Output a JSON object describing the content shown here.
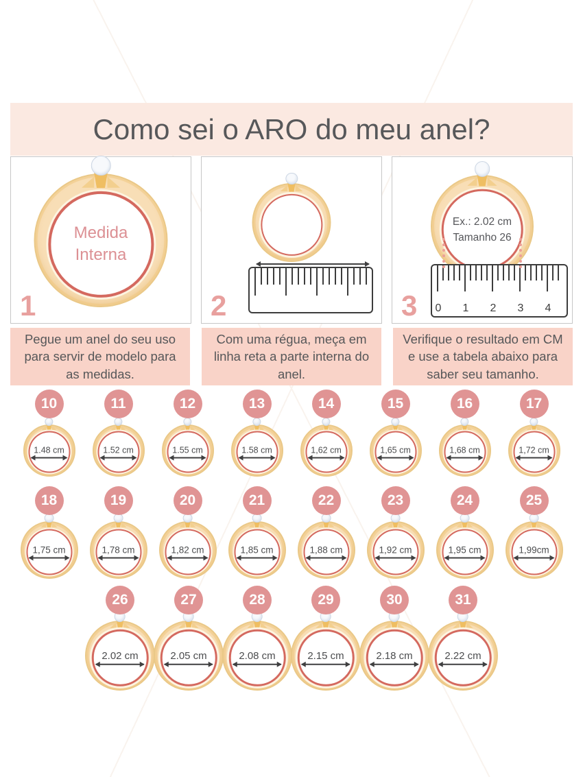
{
  "page": {
    "title": "Como sei o ARO do meu anel?"
  },
  "steps": [
    {
      "number": "1",
      "ring_text_line1": "Medida",
      "ring_text_line2": "Interna",
      "caption": "Pegue um anel do seu uso para servir de modelo para as medidas."
    },
    {
      "number": "2",
      "caption": "Com uma régua, meça em linha reta a parte interna do anel."
    },
    {
      "number": "3",
      "ring_text_line1": "Ex.: 2.02 cm",
      "ring_text_line2": "Tamanho 26",
      "ruler_numbers": [
        "0",
        "1",
        "2",
        "3",
        "4"
      ],
      "caption": "Verifique o resultado em CM e use a tabela abaixo para saber seu tamanho."
    }
  ],
  "size_chart": {
    "rows": [
      [
        {
          "size": "10",
          "measure": "1.48 cm"
        },
        {
          "size": "11",
          "measure": "1.52 cm"
        },
        {
          "size": "12",
          "measure": "1.55 cm"
        },
        {
          "size": "13",
          "measure": "1.58 cm"
        },
        {
          "size": "14",
          "measure": "1,62 cm"
        },
        {
          "size": "15",
          "measure": "1,65 cm"
        },
        {
          "size": "16",
          "measure": "1,68 cm"
        },
        {
          "size": "17",
          "measure": "1,72 cm"
        }
      ],
      [
        {
          "size": "18",
          "measure": "1,75 cm"
        },
        {
          "size": "19",
          "measure": "1,78 cm"
        },
        {
          "size": "20",
          "measure": "1,82 cm"
        },
        {
          "size": "21",
          "measure": "1,85 cm"
        },
        {
          "size": "22",
          "measure": "1,88 cm"
        },
        {
          "size": "23",
          "measure": "1,92 cm"
        },
        {
          "size": "24",
          "measure": "1,95 cm"
        },
        {
          "size": "25",
          "measure": "1,99cm"
        }
      ],
      [
        {
          "size": "26",
          "measure": "2.02 cm"
        },
        {
          "size": "27",
          "measure": "2.05 cm"
        },
        {
          "size": "28",
          "measure": "2.08 cm"
        },
        {
          "size": "29",
          "measure": "2.15 cm"
        },
        {
          "size": "30",
          "measure": "2.18 cm"
        },
        {
          "size": "31",
          "measure": "2.22 cm"
        }
      ]
    ]
  },
  "colors": {
    "header_bg": "#fbe9e1",
    "caption_bg": "#f9d3c8",
    "badge_bg": "#e09494",
    "ring_gold": "#f8deb6",
    "ring_red": "#d4695f",
    "accent_pink": "#e8a09e",
    "title_text": "#57585a"
  }
}
